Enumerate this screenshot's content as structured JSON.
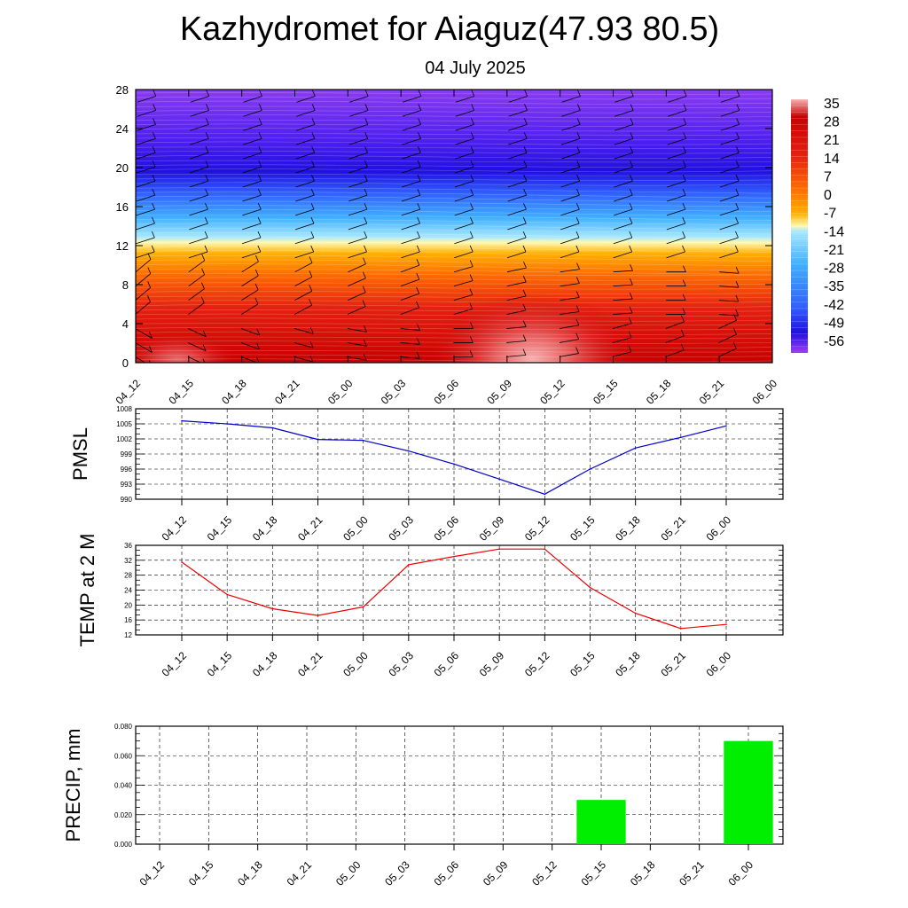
{
  "title": "Kazhydromet for Aiaguz(47.93 80.5)",
  "subtitle": "04 July 2025",
  "time_labels": [
    "04_12",
    "04_15",
    "04_18",
    "04_21",
    "05_00",
    "05_03",
    "05_06",
    "05_09",
    "05_12",
    "05_15",
    "05_18",
    "05_21",
    "06_00"
  ],
  "colors": {
    "pmsl_line": "#0000cc",
    "temp_line": "#ee0000",
    "precip_bar": "#00ee00",
    "grid": "#000000"
  },
  "chart_data": [
    {
      "type": "heatmap",
      "title": "",
      "xlabel": "",
      "ylabel": "",
      "x": [
        "04_12",
        "04_15",
        "04_18",
        "04_21",
        "05_00",
        "05_03",
        "05_06",
        "05_09",
        "05_12",
        "05_15",
        "05_18",
        "05_21",
        "06_00"
      ],
      "y_ticks": [
        0,
        4,
        8,
        12,
        16,
        20,
        24,
        28
      ],
      "ylim": [
        0,
        28
      ],
      "colorbar_ticks": [
        35,
        28,
        21,
        14,
        7,
        0,
        -7,
        -14,
        -21,
        -28,
        -35,
        -42,
        -49,
        -56
      ],
      "colorbar_range": [
        -60,
        38
      ],
      "wind_barbs": true,
      "description_levels": [
        {
          "height": 0,
          "values": [
            30,
            30,
            29,
            30,
            30,
            32,
            34,
            36,
            37,
            32,
            28,
            24,
            22
          ]
        },
        {
          "height": 4,
          "values": [
            20,
            21,
            21,
            21,
            21,
            22,
            24,
            26,
            27,
            24,
            20,
            18,
            16
          ]
        },
        {
          "height": 8,
          "values": [
            6,
            6,
            6,
            6,
            6,
            7,
            8,
            10,
            10,
            8,
            5,
            4,
            3
          ]
        },
        {
          "height": 12,
          "values": [
            -9,
            -9,
            -9,
            -9,
            -9,
            -9,
            -8,
            -8,
            -7,
            -6,
            -6,
            -6,
            -6
          ]
        },
        {
          "height": 16,
          "values": [
            -30,
            -30,
            -30,
            -30,
            -30,
            -29,
            -28,
            -27,
            -26,
            -25,
            -25,
            -25,
            -25
          ]
        },
        {
          "height": 20,
          "values": [
            -52,
            -52,
            -52,
            -52,
            -52,
            -51,
            -50,
            -49,
            -48,
            -48,
            -49,
            -50,
            -50
          ]
        },
        {
          "height": 24,
          "values": [
            -55,
            -55,
            -55,
            -55,
            -55,
            -55,
            -55,
            -55,
            -55,
            -55,
            -55,
            -55,
            -55
          ]
        },
        {
          "height": 28,
          "values": [
            -57,
            -57,
            -57,
            -57,
            -57,
            -57,
            -57,
            -57,
            -57,
            -57,
            -57,
            -57,
            -57
          ]
        }
      ]
    },
    {
      "type": "line",
      "ylabel": "PMSL",
      "xlabel": "",
      "x": [
        "04_12",
        "04_15",
        "04_18",
        "04_21",
        "05_00",
        "05_03",
        "05_06",
        "05_09",
        "05_12",
        "05_15",
        "05_18",
        "05_21",
        "06_00"
      ],
      "series": [
        {
          "values": [
            1005.6,
            1005.0,
            1004.2,
            1001.9,
            1001.7,
            999.6,
            997.0,
            994.0,
            991.0,
            996.0,
            1000.2,
            1002.3,
            1004.6
          ]
        }
      ],
      "ylim": [
        990,
        1008
      ],
      "yticks": [
        990,
        993,
        996,
        999,
        1002,
        1005,
        1008
      ],
      "grid": true
    },
    {
      "type": "line",
      "ylabel": "TEMP at 2 M",
      "xlabel": "",
      "x": [
        "04_12",
        "04_15",
        "04_18",
        "04_21",
        "05_00",
        "05_03",
        "05_06",
        "05_09",
        "05_12",
        "05_15",
        "05_18",
        "05_21",
        "06_00"
      ],
      "series": [
        {
          "values": [
            31.5,
            22.8,
            19.0,
            17.2,
            19.5,
            30.8,
            33.0,
            35.0,
            35.0,
            24.7,
            17.8,
            13.7,
            14.8
          ]
        }
      ],
      "ylim": [
        12,
        36
      ],
      "yticks": [
        12,
        16,
        20,
        24,
        28,
        32,
        36
      ],
      "grid": true
    },
    {
      "type": "bar",
      "ylabel": "PRECIP, mm",
      "xlabel": "",
      "categories": [
        "04_12",
        "04_15",
        "04_18",
        "04_21",
        "05_00",
        "05_03",
        "05_06",
        "05_09",
        "05_12",
        "05_15",
        "05_18",
        "05_21",
        "06_00"
      ],
      "values": [
        0,
        0,
        0,
        0,
        0,
        0,
        0,
        0,
        0,
        0.03,
        0,
        0,
        0.07
      ],
      "ylim": [
        0,
        0.08
      ],
      "yticks": [
        "0.000",
        "0.020",
        "0.040",
        "0.060",
        "0.080"
      ],
      "grid": true
    }
  ]
}
